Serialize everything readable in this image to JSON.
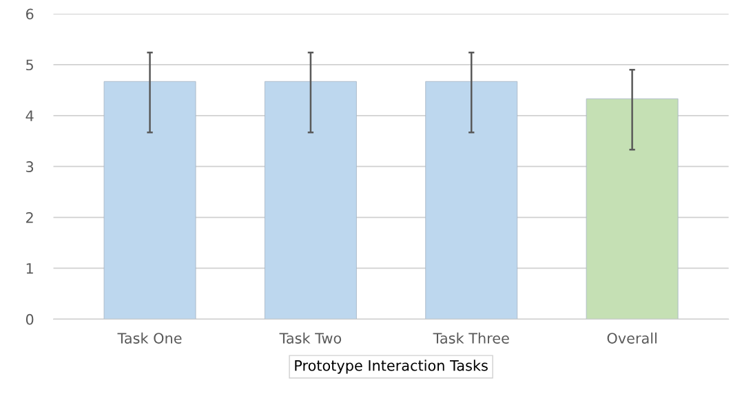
{
  "chart_data": {
    "type": "bar",
    "xlabel": "Prototype Interaction Tasks",
    "categories": [
      "Task One",
      "Task Two",
      "Task Three",
      "Overall"
    ],
    "values": [
      4.67,
      4.67,
      4.67,
      4.33
    ],
    "colors": [
      "#bdd7ee",
      "#bdd7ee",
      "#bdd7ee",
      "#c5e0b4"
    ],
    "errors": [
      [
        3.67,
        5.24
      ],
      [
        3.67,
        5.24
      ],
      [
        3.67,
        5.24
      ],
      [
        3.33,
        4.9
      ]
    ],
    "ylim": [
      0,
      6
    ],
    "yticks": [
      0,
      1,
      2,
      3,
      4,
      5,
      6
    ],
    "grid": "y"
  }
}
